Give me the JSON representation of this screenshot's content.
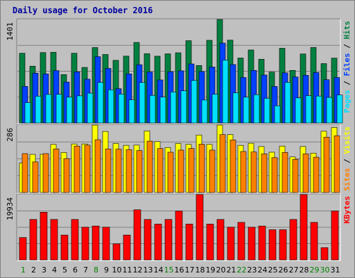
{
  "chart_data": {
    "type": "bar",
    "title": "Daily usage for October 2016",
    "x": [
      "1",
      "2",
      "3",
      "4",
      "5",
      "6",
      "7",
      "8",
      "9",
      "10",
      "11",
      "12",
      "13",
      "14",
      "15",
      "16",
      "17",
      "18",
      "19",
      "20",
      "21",
      "22",
      "23",
      "24",
      "25",
      "26",
      "27",
      "28",
      "29",
      "30",
      "31"
    ],
    "weekend_days": [
      "1",
      "8",
      "15",
      "22",
      "29",
      "30"
    ],
    "panels": [
      {
        "name": "hits-files-pages",
        "ymax_label": "1401",
        "ymax": 1401,
        "legend": [
          {
            "text": "Pages",
            "color": "#00e0ff"
          },
          {
            "text": " / ",
            "color": "#000000"
          },
          {
            "text": "Files",
            "color": "#0040ff"
          },
          {
            "text": " / ",
            "color": "#000000"
          },
          {
            "text": "Hits",
            "color": "#008040"
          }
        ],
        "series": [
          {
            "name": "Hits",
            "color": "#008040",
            "values": [
              944,
              769,
              953,
              957,
              655,
              944,
              752,
              1021,
              927,
              848,
              905,
              1090,
              938,
              904,
              936,
              950,
              1114,
              778,
              1119,
              1401,
              1121,
              879,
              988,
              863,
              689,
              1011,
              712,
              934,
              1022,
              804,
              878
            ]
          },
          {
            "name": "Files",
            "color": "#0040ff",
            "values": [
              495,
              675,
              664,
              709,
              554,
              693,
              593,
              898,
              739,
              465,
              665,
              789,
              690,
              583,
              695,
              706,
              799,
              696,
              758,
              1081,
              791,
              616,
              712,
              649,
              494,
              679,
              623,
              646,
              683,
              586,
              616
            ]
          },
          {
            "name": "Pages",
            "color": "#00e0ff",
            "values": [
              276,
              363,
              386,
              388,
              350,
              368,
              404,
              549,
              449,
              391,
              313,
              548,
              374,
              351,
              420,
              436,
              575,
              311,
              390,
              852,
              409,
              350,
              383,
              334,
              233,
              550,
              340,
              370,
              365,
              347,
              379
            ]
          }
        ]
      },
      {
        "name": "visits-sites",
        "ymax_label": "286",
        "ymax": 286,
        "legend": [
          {
            "text": "Sites",
            "color": "#ff8000"
          },
          {
            "text": " / ",
            "color": "#000000"
          },
          {
            "text": "Visits",
            "color": "#ffff00"
          }
        ],
        "series": [
          {
            "name": "Visits",
            "color": "#ffff00",
            "values": [
              125,
              162,
              162,
              204,
              170,
              206,
              206,
              286,
              259,
              208,
              200,
              201,
              261,
              216,
              191,
              208,
              204,
              244,
              204,
              286,
              246,
              200,
              209,
              195,
              171,
              197,
              151,
              195,
              167,
              260,
              276
            ]
          },
          {
            "name": "Sites",
            "color": "#ff8000",
            "values": [
              165,
              130,
              165,
              185,
              144,
              197,
              201,
              224,
              185,
              184,
              182,
              178,
              218,
              187,
              171,
              180,
              187,
              205,
              180,
              246,
              223,
              174,
              172,
              164,
              148,
              170,
              141,
              164,
              150,
              235,
              241
            ]
          }
        ]
      },
      {
        "name": "kbytes",
        "ymax_label": "19934",
        "ymax": 19934,
        "legend": [
          {
            "text": "KBytes",
            "color": "#ff0000"
          }
        ],
        "series": [
          {
            "name": "KBytes",
            "color": "#ff0000",
            "values": [
              6839,
              12356,
              14567,
              12356,
              7600,
              12356,
              9990,
              10350,
              9990,
              4910,
              7600,
              15310,
              12356,
              10940,
              12356,
              14917,
              10940,
              19934,
              10940,
              12356,
              9990,
              11467,
              9990,
              10350,
              9230,
              9230,
              12356,
              19934,
              11467,
              3760,
              14917
            ]
          }
        ]
      }
    ]
  },
  "colors": {
    "weekday_label": "#008000",
    "weekend_label": "#008000",
    "regular_day_label": "#000000"
  }
}
